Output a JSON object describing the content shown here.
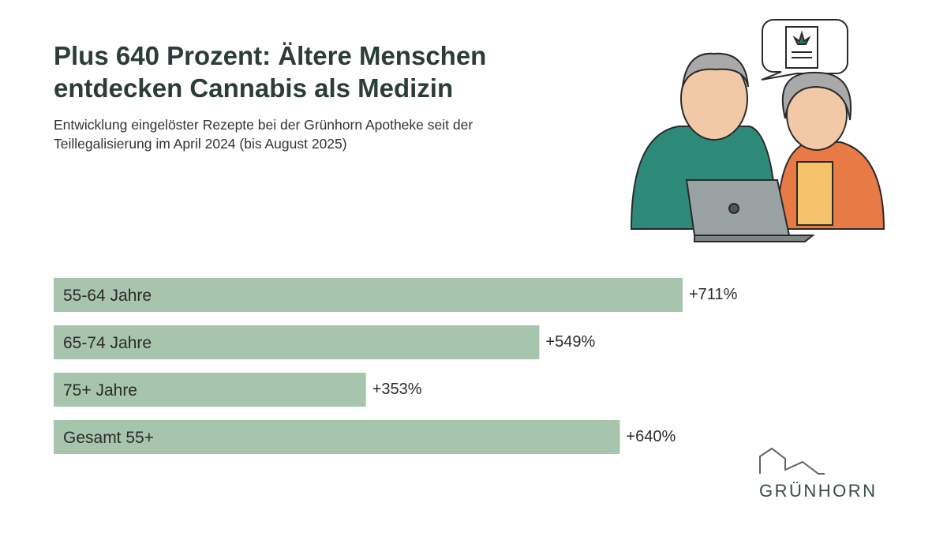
{
  "chart_data": {
    "type": "bar",
    "orientation": "horizontal",
    "title": "Plus 640 Prozent: Ältere Menschen entdecken Cannabis als Medizin",
    "subtitle": "Entwicklung eingelöster Rezepte bei der Grünhorn Apotheke seit der Teillegalisierung im April 2024 (bis August 2025)",
    "categories": [
      "55-64 Jahre",
      "65-74 Jahre",
      "75+ Jahre",
      "Gesamt 55+"
    ],
    "values": [
      711,
      549,
      353,
      640
    ],
    "value_labels": [
      "+711%",
      "+549%",
      "+353%",
      "+640%"
    ],
    "color": "#a7c4ad"
  },
  "logo": "GRÜNHORN"
}
